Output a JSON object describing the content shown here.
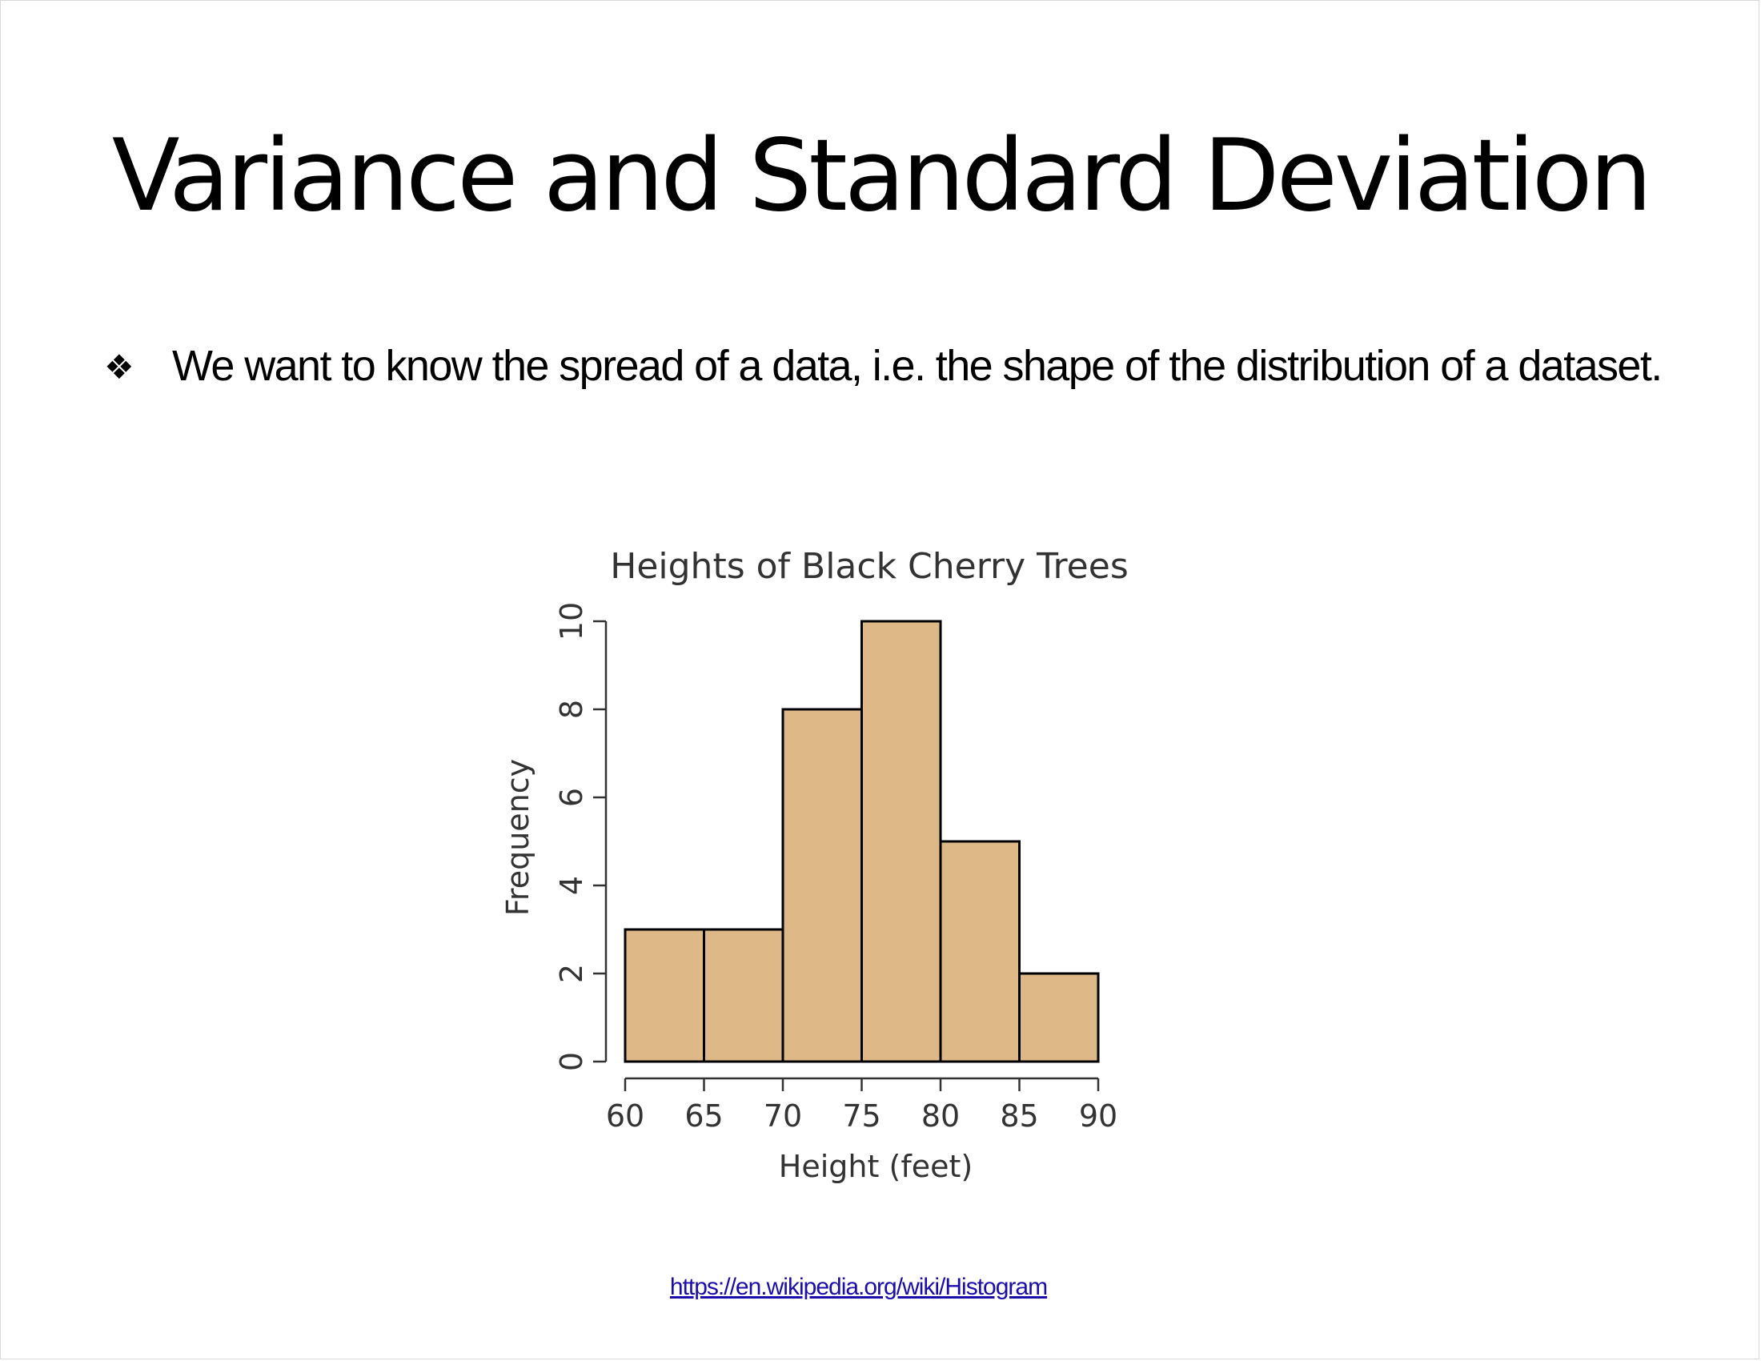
{
  "slide": {
    "title": "Variance and Standard Deviation",
    "bullet_symbol": "❖",
    "bullet_text": "We want to know the spread of a data, i.e. the shape of the distribution of a dataset.",
    "source_link": "https://en.wikipedia.org/wiki/Histogram"
  },
  "chart_data": {
    "type": "bar",
    "subtype": "histogram",
    "title": "Heights of Black Cherry Trees",
    "xlabel": "Height (feet)",
    "ylabel": "Frequency",
    "bins": [
      {
        "from": 60,
        "to": 65,
        "count": 3
      },
      {
        "from": 65,
        "to": 70,
        "count": 3
      },
      {
        "from": 70,
        "to": 75,
        "count": 8
      },
      {
        "from": 75,
        "to": 80,
        "count": 10
      },
      {
        "from": 80,
        "to": 85,
        "count": 5
      },
      {
        "from": 85,
        "to": 90,
        "count": 2
      }
    ],
    "xlim": [
      60,
      90
    ],
    "ylim": [
      0,
      10
    ],
    "x_ticks": [
      60,
      65,
      70,
      75,
      80,
      85,
      90
    ],
    "y_ticks": [
      0,
      2,
      4,
      6,
      8,
      10
    ],
    "bar_color": "#deb887",
    "grid": false,
    "legend": "none"
  }
}
